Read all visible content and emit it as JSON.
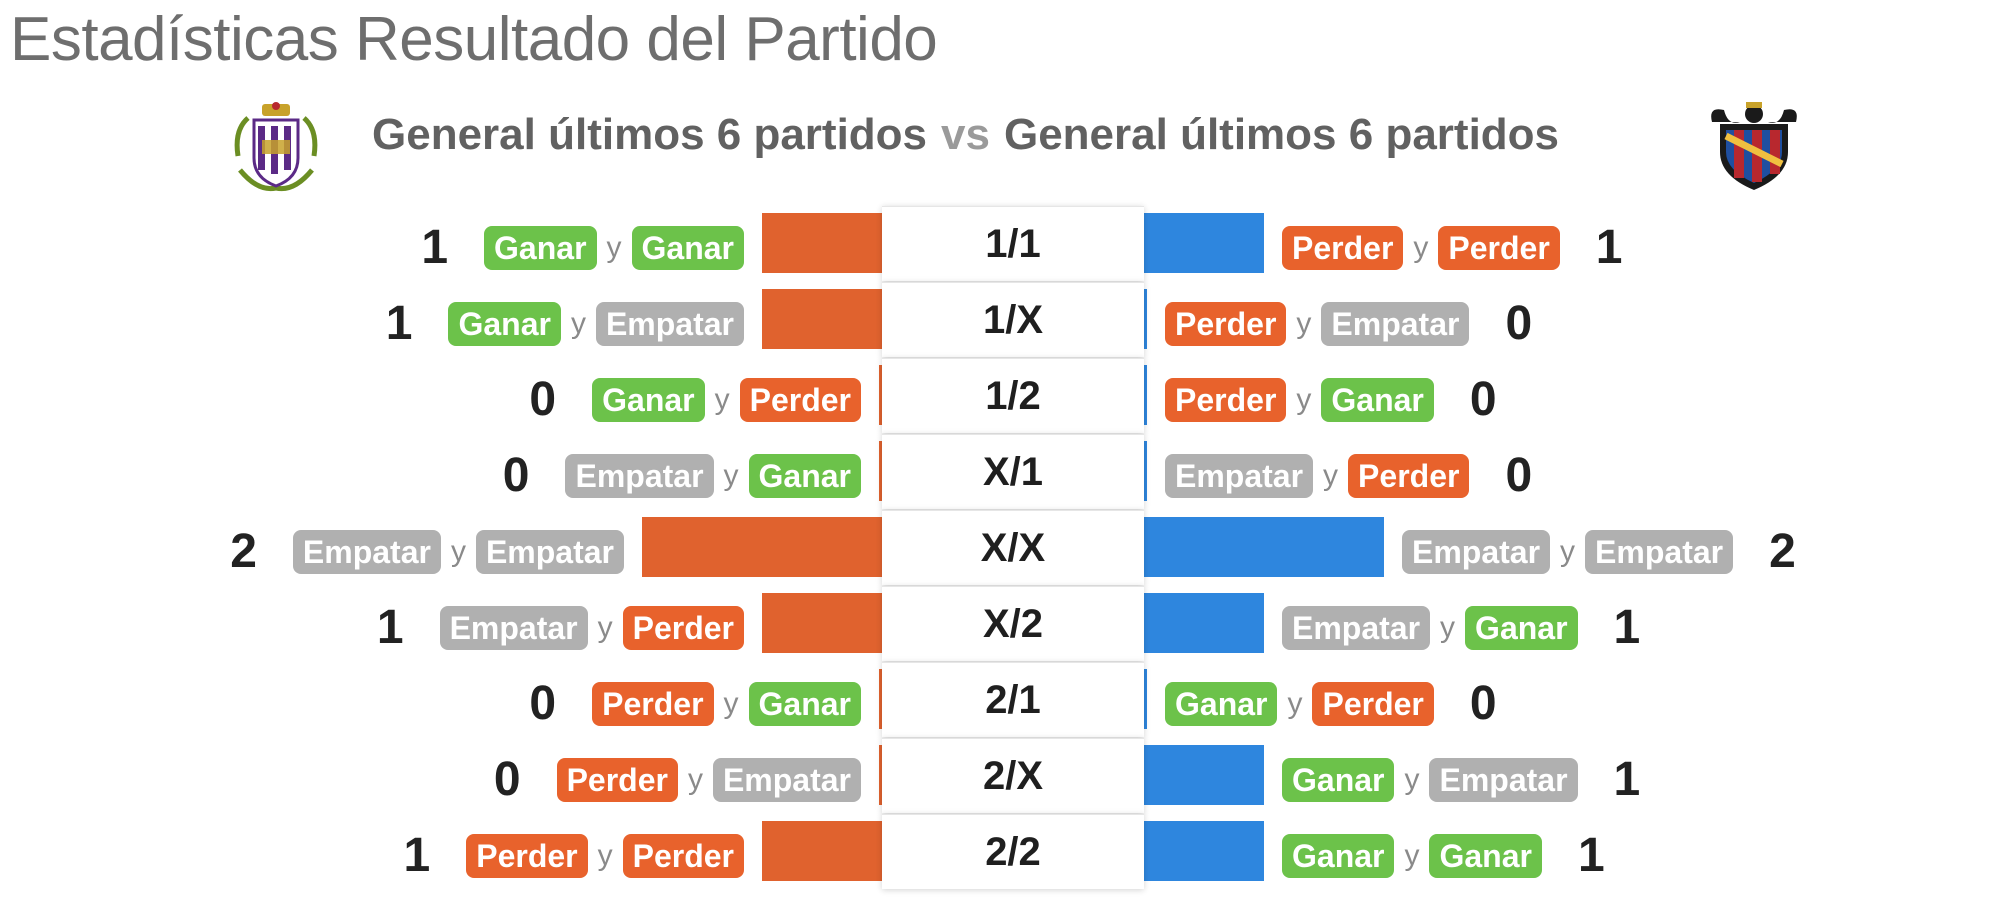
{
  "title": "Estadísticas Resultado del Partido",
  "header": {
    "left_label": "General últimos 6 partidos",
    "vs": "vs",
    "right_label": "General últimos 6 partidos",
    "left_crest_icon": "team-crest-left-icon",
    "right_crest_icon": "team-crest-right-icon"
  },
  "colors": {
    "left_bar": "#e0622e",
    "right_bar": "#2e86de",
    "win": "#6cc24a",
    "draw": "#b0b0b0",
    "loss": "#e8622c"
  },
  "connector": "y",
  "chart_data": {
    "type": "bar",
    "orientation": "horizontal-diverging",
    "categories": [
      "1/1",
      "1/X",
      "1/2",
      "X/1",
      "X/X",
      "X/2",
      "2/1",
      "2/X",
      "2/2"
    ],
    "xlim": [
      0,
      2
    ],
    "series": [
      {
        "values": [
          1,
          1,
          0,
          0,
          2,
          1,
          0,
          0,
          1
        ],
        "labels": [
          [
            "Ganar",
            "Ganar"
          ],
          [
            "Ganar",
            "Empatar"
          ],
          [
            "Ganar",
            "Perder"
          ],
          [
            "Empatar",
            "Ganar"
          ],
          [
            "Empatar",
            "Empatar"
          ],
          [
            "Empatar",
            "Perder"
          ],
          [
            "Perder",
            "Ganar"
          ],
          [
            "Perder",
            "Empatar"
          ],
          [
            "Perder",
            "Perder"
          ]
        ]
      },
      {
        "values": [
          1,
          0,
          0,
          0,
          2,
          1,
          0,
          1,
          1
        ],
        "labels": [
          [
            "Perder",
            "Perder"
          ],
          [
            "Perder",
            "Empatar"
          ],
          [
            "Perder",
            "Ganar"
          ],
          [
            "Empatar",
            "Perder"
          ],
          [
            "Empatar",
            "Empatar"
          ],
          [
            "Empatar",
            "Ganar"
          ],
          [
            "Ganar",
            "Perder"
          ],
          [
            "Ganar",
            "Empatar"
          ],
          [
            "Ganar",
            "Ganar"
          ]
        ]
      }
    ]
  }
}
